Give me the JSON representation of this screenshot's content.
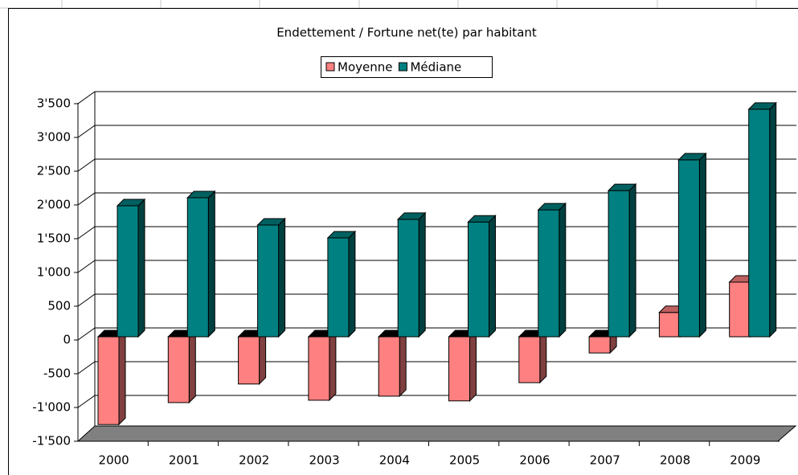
{
  "chart_data": {
    "type": "bar3d",
    "title": "Endettement / Fortune net(te) par habitant",
    "categories": [
      "2000",
      "2001",
      "2002",
      "2003",
      "2004",
      "2005",
      "2006",
      "2007",
      "2008",
      "2009"
    ],
    "series": [
      {
        "name": "Moyenne",
        "color": "#ff8080",
        "values": [
          -1300,
          -975,
          -700,
          -940,
          -880,
          -950,
          -680,
          -240,
          360,
          810
        ]
      },
      {
        "name": "Médiane",
        "color": "#008080",
        "values": [
          1940,
          2060,
          1655,
          1465,
          1740,
          1700,
          1880,
          2165,
          2620,
          3370
        ]
      }
    ],
    "ylim": [
      -1500,
      3500
    ],
    "yticks": [
      {
        "value": 3500,
        "label": "3'500"
      },
      {
        "value": 3000,
        "label": "3'000"
      },
      {
        "value": 2500,
        "label": "2'500"
      },
      {
        "value": 2000,
        "label": "2'000"
      },
      {
        "value": 1500,
        "label": "1'500"
      },
      {
        "value": 1000,
        "label": "1'000"
      },
      500,
      0,
      -500,
      {
        "value": -1000,
        "label": "-1'000"
      },
      {
        "value": -1500,
        "label": "-1'500"
      }
    ],
    "negative_tick_color": "#ff0000",
    "grid": true,
    "legend": "top"
  }
}
